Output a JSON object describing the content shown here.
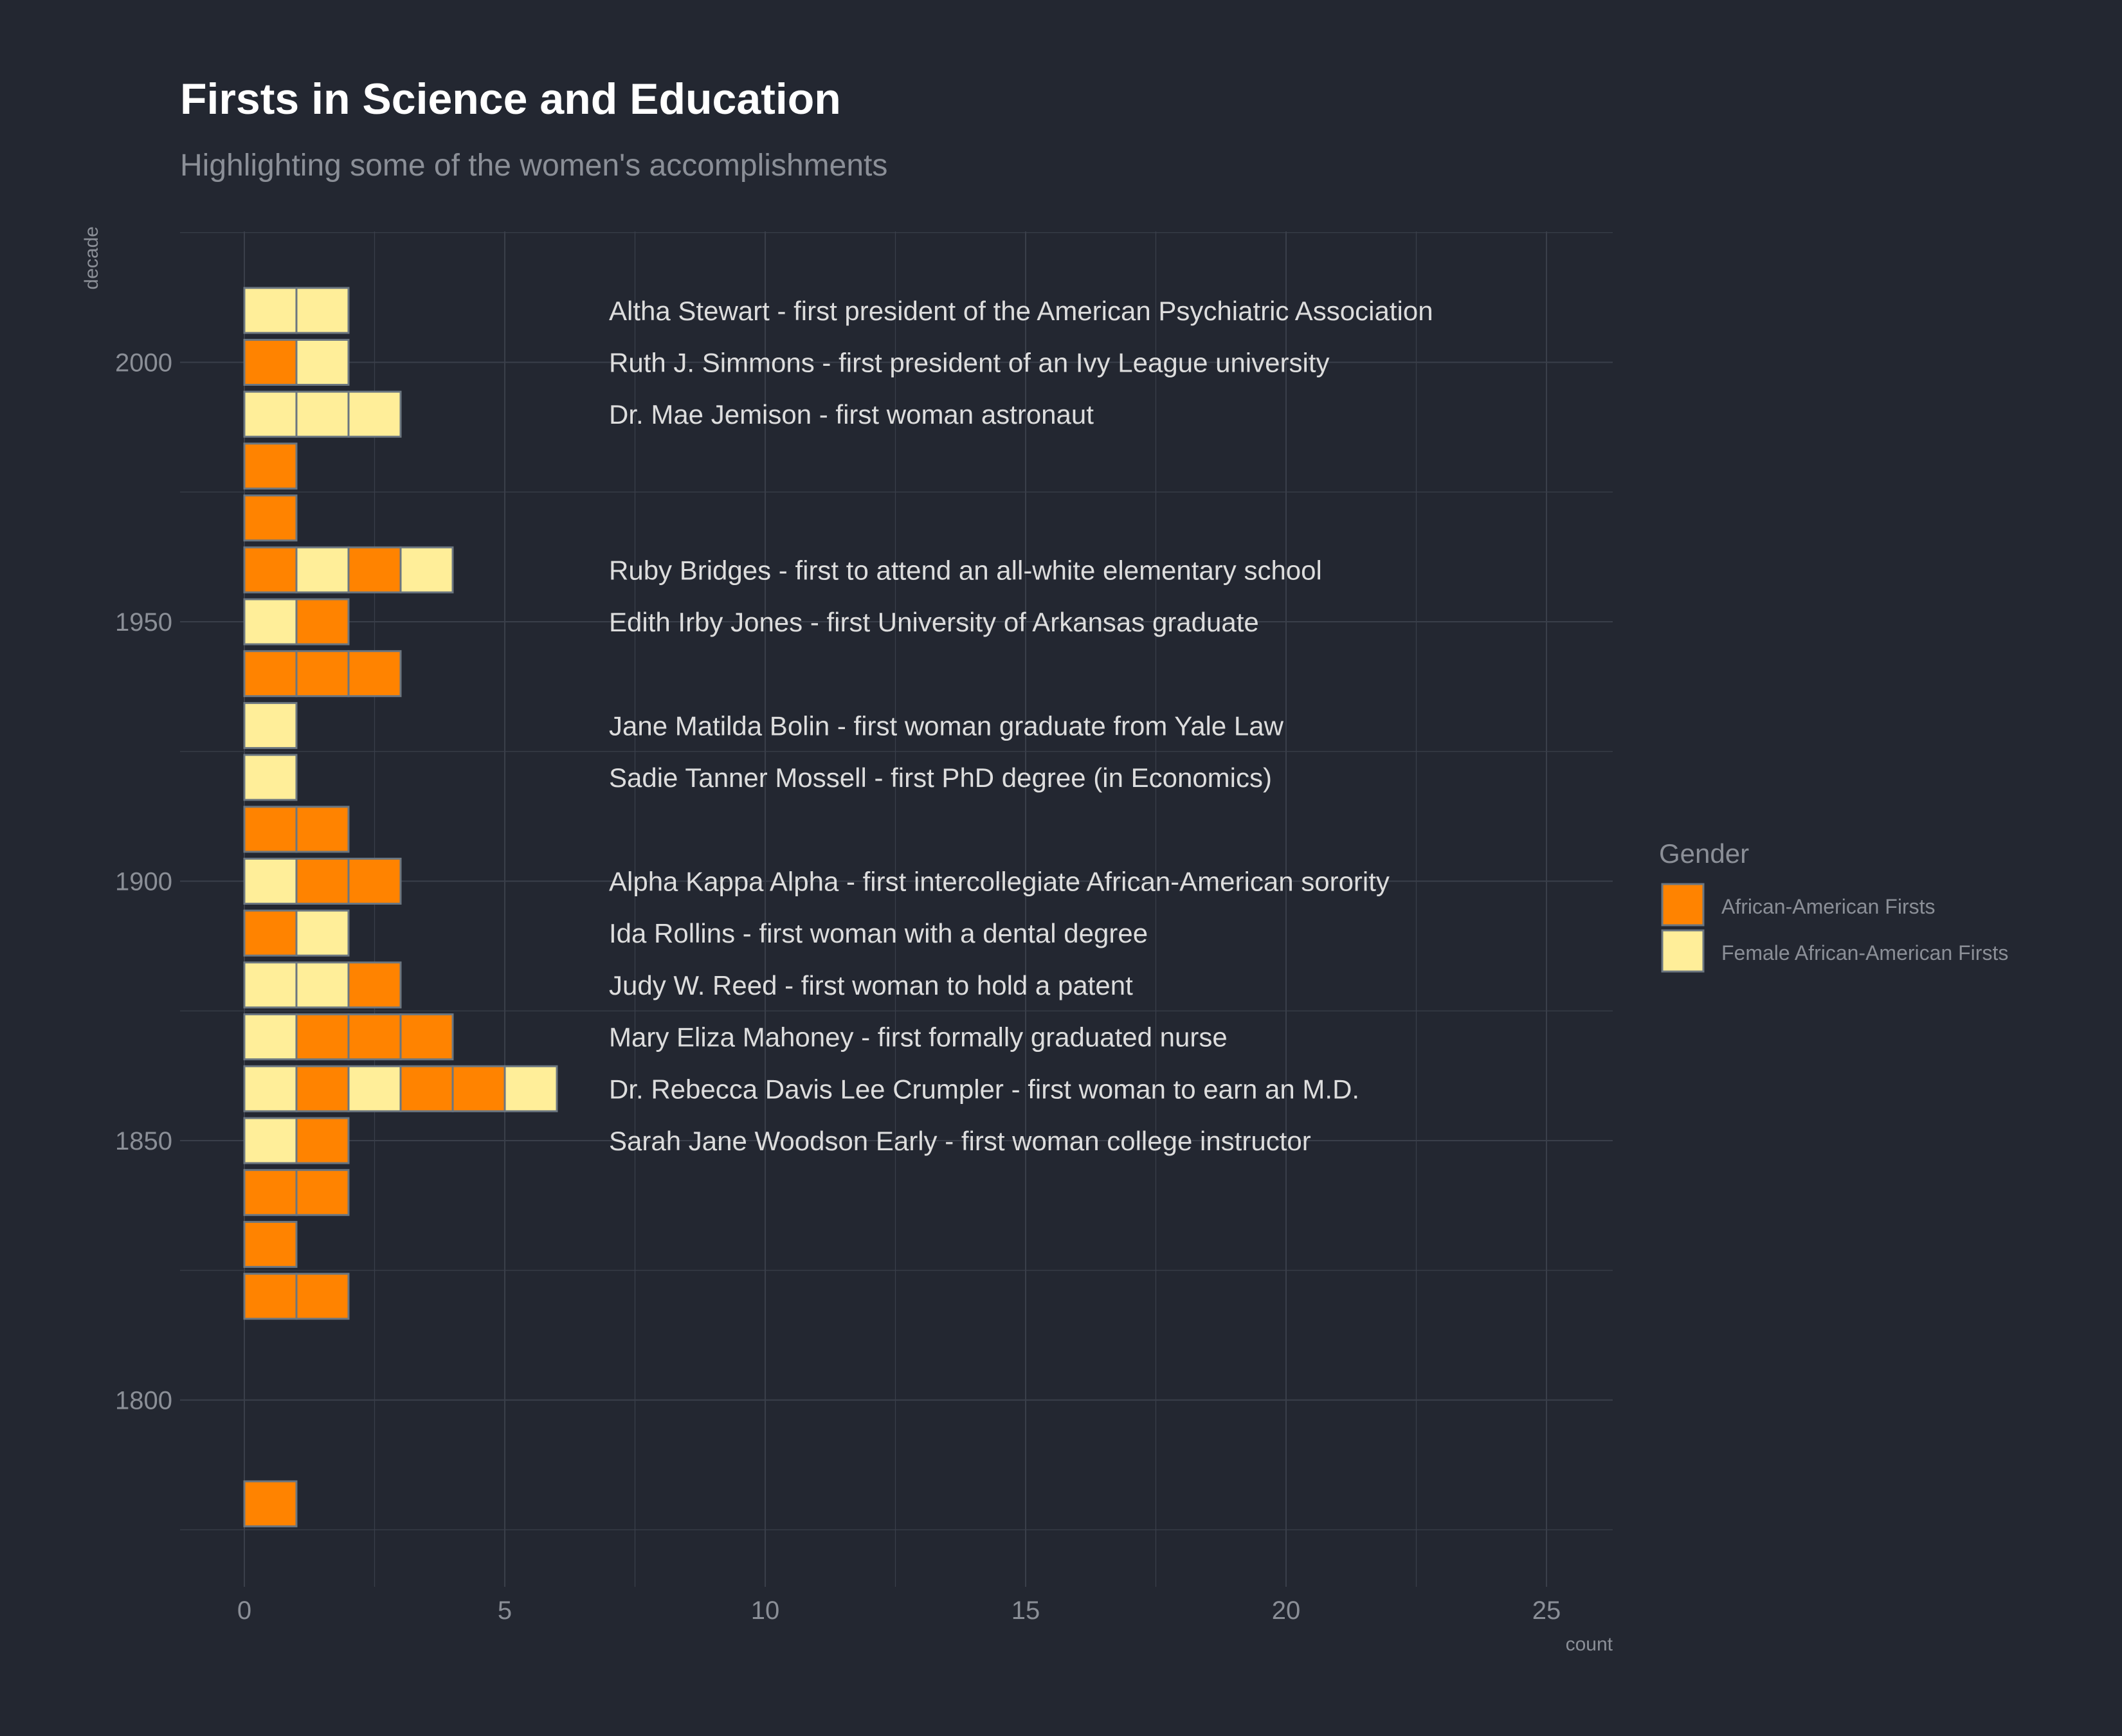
{
  "chart_data": {
    "type": "bar",
    "title": "Firsts in Science and Education",
    "subtitle": "Highlighting some of the women's accomplishments",
    "xlabel": "count",
    "ylabel": "decade",
    "xlim": [
      0,
      25
    ],
    "ylim": [
      1780,
      2010
    ],
    "x_ticks": [
      "0",
      "5",
      "10",
      "15",
      "20",
      "25"
    ],
    "y_ticks": [
      "1800",
      "1850",
      "1900",
      "1950",
      "2000"
    ],
    "grid": true,
    "legend_position": "right",
    "colors": {
      "background": "#232731",
      "grid": "#3a3f4a",
      "tile_border": "#6b7680",
      "African-American Firsts": "#ff8300",
      "Female African-American Firsts": "#ffee99"
    },
    "legend": {
      "title": "Gender",
      "entries": [
        "African-American Firsts",
        "Female African-American Firsts"
      ]
    },
    "stacks": [
      {
        "decade": 2010,
        "tiles": [
          "Female African-American Firsts",
          "Female African-American Firsts"
        ]
      },
      {
        "decade": 2000,
        "tiles": [
          "African-American Firsts",
          "Female African-American Firsts"
        ]
      },
      {
        "decade": 1990,
        "tiles": [
          "Female African-American Firsts",
          "Female African-American Firsts",
          "Female African-American Firsts"
        ]
      },
      {
        "decade": 1980,
        "tiles": [
          "African-American Firsts"
        ]
      },
      {
        "decade": 1970,
        "tiles": [
          "African-American Firsts"
        ]
      },
      {
        "decade": 1960,
        "tiles": [
          "African-American Firsts",
          "Female African-American Firsts",
          "African-American Firsts",
          "Female African-American Firsts"
        ]
      },
      {
        "decade": 1950,
        "tiles": [
          "Female African-American Firsts",
          "African-American Firsts"
        ]
      },
      {
        "decade": 1940,
        "tiles": [
          "African-American Firsts",
          "African-American Firsts",
          "African-American Firsts"
        ]
      },
      {
        "decade": 1930,
        "tiles": [
          "Female African-American Firsts"
        ]
      },
      {
        "decade": 1920,
        "tiles": [
          "Female African-American Firsts"
        ]
      },
      {
        "decade": 1910,
        "tiles": [
          "African-American Firsts",
          "African-American Firsts"
        ]
      },
      {
        "decade": 1900,
        "tiles": [
          "Female African-American Firsts",
          "African-American Firsts",
          "African-American Firsts"
        ]
      },
      {
        "decade": 1890,
        "tiles": [
          "African-American Firsts",
          "Female African-American Firsts"
        ]
      },
      {
        "decade": 1880,
        "tiles": [
          "Female African-American Firsts",
          "Female African-American Firsts",
          "African-American Firsts"
        ]
      },
      {
        "decade": 1870,
        "tiles": [
          "Female African-American Firsts",
          "African-American Firsts",
          "African-American Firsts",
          "African-American Firsts"
        ]
      },
      {
        "decade": 1860,
        "tiles": [
          "Female African-American Firsts",
          "African-American Firsts",
          "Female African-American Firsts",
          "African-American Firsts",
          "African-American Firsts",
          "Female African-American Firsts"
        ]
      },
      {
        "decade": 1850,
        "tiles": [
          "Female African-American Firsts",
          "African-American Firsts"
        ]
      },
      {
        "decade": 1840,
        "tiles": [
          "African-American Firsts",
          "African-American Firsts"
        ]
      },
      {
        "decade": 1830,
        "tiles": [
          "African-American Firsts"
        ]
      },
      {
        "decade": 1820,
        "tiles": [
          "African-American Firsts",
          "African-American Firsts"
        ]
      },
      {
        "decade": 1780,
        "tiles": [
          "African-American Firsts"
        ]
      }
    ],
    "annotations": [
      {
        "decade": 2010,
        "count": 7,
        "text": "Altha Stewart - first president of the American Psychiatric Association"
      },
      {
        "decade": 2000,
        "count": 7,
        "text": "Ruth J. Simmons - first president of an Ivy League university"
      },
      {
        "decade": 1990,
        "count": 7,
        "text": "Dr. Mae Jemison - first woman astronaut"
      },
      {
        "decade": 1960,
        "count": 7,
        "text": "Ruby Bridges - first to attend an all-white elementary school"
      },
      {
        "decade": 1950,
        "count": 7,
        "text": "Edith Irby Jones - first University of Arkansas graduate"
      },
      {
        "decade": 1930,
        "count": 7,
        "text": "Jane Matilda Bolin - first woman graduate from Yale Law"
      },
      {
        "decade": 1920,
        "count": 7,
        "text": "Sadie Tanner Mossell - first PhD degree (in Economics)"
      },
      {
        "decade": 1900,
        "count": 7,
        "text": "Alpha Kappa Alpha - first intercollegiate African-American sorority"
      },
      {
        "decade": 1890,
        "count": 7,
        "text": "Ida Rollins - first woman with a dental degree"
      },
      {
        "decade": 1880,
        "count": 7,
        "text": "Judy W. Reed - first woman to hold a patent"
      },
      {
        "decade": 1870,
        "count": 7,
        "text": "Mary Eliza Mahoney - first formally graduated nurse"
      },
      {
        "decade": 1860,
        "count": 7,
        "text": "Dr. Rebecca Davis Lee Crumpler - first woman to earn an M.D."
      },
      {
        "decade": 1850,
        "count": 7,
        "text": "Sarah Jane Woodson Early - first woman college instructor"
      }
    ]
  }
}
